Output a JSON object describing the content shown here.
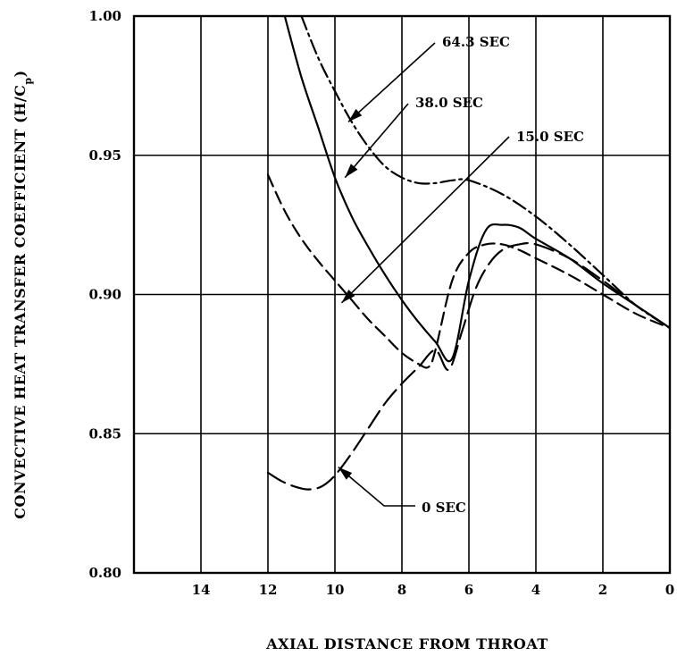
{
  "chart_data": {
    "type": "line",
    "xlabel": "AXIAL DISTANCE FROM THROAT",
    "ylabel": "CONVECTIVE HEAT TRANSFER COEFFICIENT (H/C",
    "ylabel_sub": "p",
    "ylabel_end": ")",
    "xlim": [
      16,
      0
    ],
    "ylim": [
      0.8,
      1.0
    ],
    "x_ticks": [
      14,
      12,
      10,
      8,
      6,
      4,
      2,
      0
    ],
    "y_ticks": [
      0.8,
      0.85,
      0.9,
      0.95,
      1.0
    ],
    "x_tick_labels": [
      "14",
      "12",
      "10",
      "8",
      "6",
      "4",
      "2",
      "0"
    ],
    "y_tick_labels": [
      "0.80",
      "0.85",
      "0.90",
      "0.95",
      "1.00"
    ],
    "grid": true,
    "series": [
      {
        "name": "64.3 SEC",
        "style": "dashdot",
        "x": [
          11.0,
          10.5,
          10.0,
          9.5,
          9.0,
          8.5,
          8.0,
          7.5,
          7.0,
          6.5,
          6.0,
          5.0,
          4.0,
          3.0,
          2.0,
          1.0,
          0.0
        ],
        "y": [
          1.0,
          0.985,
          0.973,
          0.962,
          0.953,
          0.946,
          0.942,
          0.94,
          0.94,
          0.941,
          0.941,
          0.936,
          0.928,
          0.918,
          0.907,
          0.896,
          0.888
        ]
      },
      {
        "name": "38.0 SEC",
        "style": "solid",
        "x": [
          11.5,
          11.0,
          10.5,
          10.0,
          9.5,
          9.0,
          8.5,
          8.0,
          7.5,
          7.0,
          6.5,
          6.0,
          5.5,
          5.0,
          4.5,
          4.0,
          3.0,
          2.0,
          1.0,
          0.0
        ],
        "y": [
          1.0,
          0.978,
          0.96,
          0.942,
          0.928,
          0.917,
          0.907,
          0.898,
          0.89,
          0.883,
          0.877,
          0.905,
          0.923,
          0.925,
          0.924,
          0.92,
          0.913,
          0.904,
          0.896,
          0.888
        ]
      },
      {
        "name": "15.0 SEC",
        "style": "dashed",
        "x": [
          12.0,
          11.5,
          11.0,
          10.5,
          10.0,
          9.5,
          9.0,
          8.5,
          8.0,
          7.5,
          7.2,
          7.0,
          6.5,
          6.0,
          5.5,
          5.0,
          4.5,
          4.0,
          3.0,
          2.0,
          1.0,
          0.0
        ],
        "y": [
          0.943,
          0.93,
          0.92,
          0.912,
          0.905,
          0.898,
          0.891,
          0.885,
          0.879,
          0.875,
          0.874,
          0.88,
          0.905,
          0.915,
          0.918,
          0.918,
          0.916,
          0.913,
          0.907,
          0.9,
          0.893,
          0.888
        ]
      },
      {
        "name": "0 SEC",
        "style": "longdash",
        "x": [
          12.0,
          11.6,
          11.2,
          10.8,
          10.4,
          10.0,
          9.5,
          9.0,
          8.5,
          8.0,
          7.5,
          7.0,
          6.6,
          6.2,
          5.8,
          5.4,
          5.0,
          4.5,
          4.0,
          3.0,
          2.0,
          1.0,
          0.0
        ],
        "y": [
          0.836,
          0.833,
          0.831,
          0.83,
          0.831,
          0.835,
          0.843,
          0.852,
          0.861,
          0.868,
          0.874,
          0.88,
          0.873,
          0.887,
          0.902,
          0.911,
          0.916,
          0.918,
          0.918,
          0.913,
          0.905,
          0.896,
          0.888
        ]
      }
    ],
    "annotations": [
      {
        "text": "64.3 SEC",
        "tip_x": 9.6,
        "tip_y": 0.962
      },
      {
        "text": "38.0 SEC",
        "tip_x": 9.7,
        "tip_y": 0.942
      },
      {
        "text": "15.0 SEC",
        "tip_x": 9.8,
        "tip_y": 0.897
      },
      {
        "text": "0 SEC",
        "tip_x": 9.9,
        "tip_y": 0.838
      }
    ]
  }
}
